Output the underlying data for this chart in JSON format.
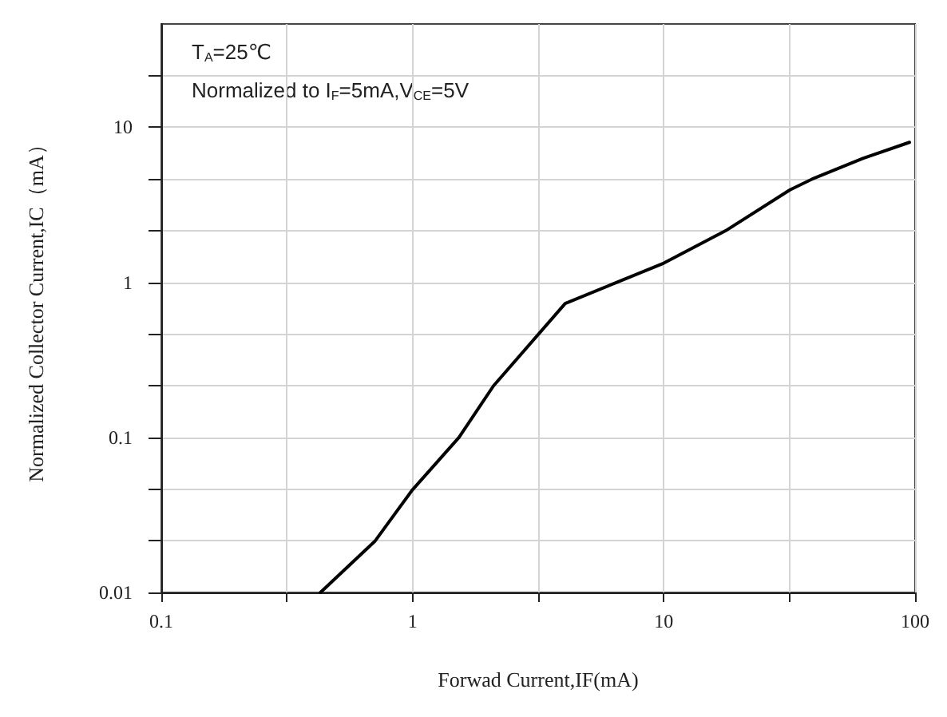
{
  "chart_data": {
    "type": "line",
    "xlabel": "Forwad Current,IF(mA)",
    "ylabel": "Normalized Collector Current,IC（mA）",
    "annotations": [
      "T$_{A}$=25℃",
      "Normalized to I$_{F}$=5mA,V$_{CE}$=5V"
    ],
    "log": "xy",
    "grid": true,
    "marker": "none",
    "line_style": "solid",
    "xlim": [
      0.1,
      100
    ],
    "ylim": [
      0.01,
      46.4
    ],
    "xticks": [
      0.1,
      {
        "value": 0.316,
        "label": null
      },
      1,
      {
        "value": 3.16,
        "label": null
      },
      10,
      {
        "value": 31.6,
        "label": null
      },
      100
    ],
    "yticks": [
      0.01,
      {
        "value": 0.0215,
        "label": null
      },
      {
        "value": 0.0464,
        "label": null
      },
      0.1,
      {
        "value": 0.215,
        "label": null
      },
      {
        "value": 0.464,
        "label": null
      },
      1,
      {
        "value": 2.15,
        "label": null
      },
      {
        "value": 4.64,
        "label": null
      },
      10,
      {
        "value": 21.5,
        "label": null
      }
    ],
    "series": [
      {
        "color": "#000000",
        "x": [
          0.43,
          0.71,
          1,
          1.53,
          2.1,
          4.05,
          6.5,
          10,
          17.6,
          31.8,
          39,
          62,
          95
        ],
        "values": [
          0.01,
          0.0215,
          0.046,
          0.1,
          0.215,
          0.73,
          1,
          1.33,
          2.15,
          3.95,
          4.64,
          6.3,
          8
        ]
      }
    ]
  }
}
